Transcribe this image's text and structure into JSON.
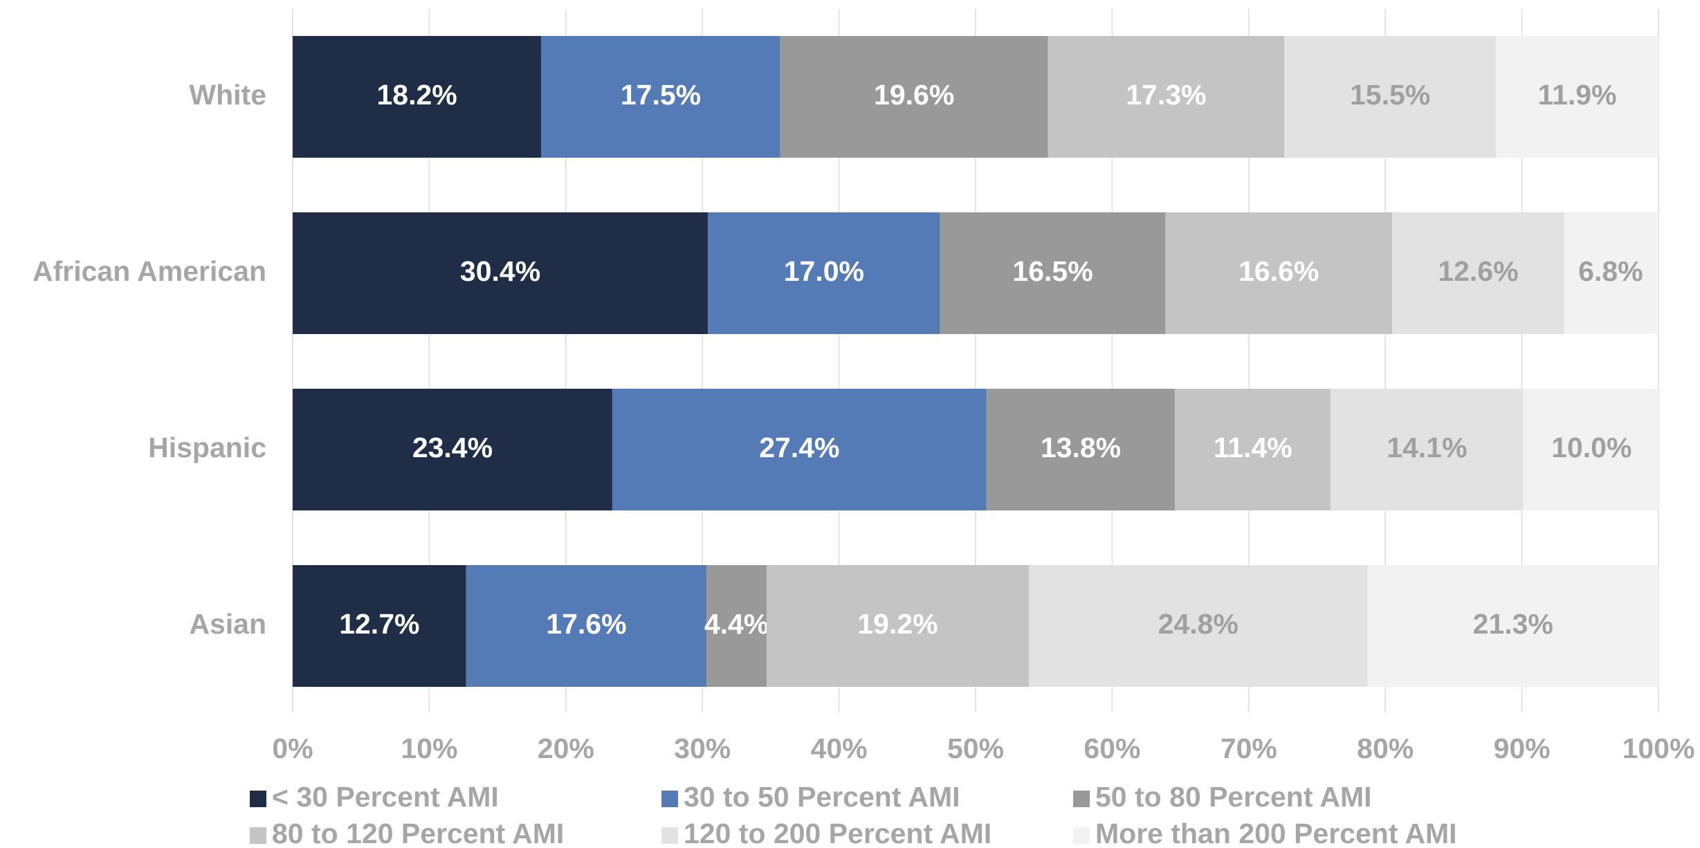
{
  "chart_data": {
    "type": "stacked-bar-horizontal",
    "categories": [
      "White",
      "African American",
      "Hispanic",
      "Asian"
    ],
    "series": [
      {
        "name": "< 30 Percent AMI",
        "color": "#1f2d47",
        "label_color": "#ffffff",
        "values": [
          18.2,
          30.4,
          23.4,
          12.7
        ],
        "value_labels": [
          "18.2%",
          "30.4%",
          "23.4%",
          "12.7%"
        ]
      },
      {
        "name": "30 to 50 Percent AMI",
        "color": "#547bb6",
        "label_color": "#ffffff",
        "values": [
          17.5,
          17.0,
          27.4,
          17.6
        ],
        "value_labels": [
          "17.5%",
          "17.0%",
          "27.4%",
          "17.6%"
        ]
      },
      {
        "name": "50 to 80 Percent AMI",
        "color": "#999999",
        "label_color": "#ffffff",
        "values": [
          19.6,
          16.5,
          13.8,
          4.4
        ],
        "value_labels": [
          "19.6%",
          "16.5%",
          "13.8%",
          "4.4%"
        ]
      },
      {
        "name": "80 to 120 Percent AMI",
        "color": "#c4c4c4",
        "label_color": "#ffffff",
        "values": [
          17.3,
          16.6,
          11.4,
          19.2
        ],
        "value_labels": [
          "17.3%",
          "16.6%",
          "11.4%",
          "19.2%"
        ]
      },
      {
        "name": "120 to 200 Percent AMI",
        "color": "#e2e2e2",
        "label_color": "#a0a0a0",
        "values": [
          15.5,
          12.6,
          14.1,
          24.8
        ],
        "value_labels": [
          "15.5%",
          "12.6%",
          "14.1%",
          "24.8%"
        ]
      },
      {
        "name": "More than 200 Percent AMI",
        "color": "#f2f2f2",
        "label_color": "#a0a0a0",
        "values": [
          11.9,
          6.8,
          10.0,
          21.3
        ],
        "value_labels": [
          "11.9%",
          "6.8%",
          "10.0%",
          "21.3%"
        ]
      }
    ],
    "xlim": [
      0,
      100
    ],
    "xticks": [
      {
        "value": 0,
        "label": "0%"
      },
      {
        "value": 10,
        "label": "10%"
      },
      {
        "value": 20,
        "label": "20%"
      },
      {
        "value": 30,
        "label": "30%"
      },
      {
        "value": 40,
        "label": "40%"
      },
      {
        "value": 50,
        "label": "50%"
      },
      {
        "value": 60,
        "label": "60%"
      },
      {
        "value": 70,
        "label": "70%"
      },
      {
        "value": 80,
        "label": "80%"
      },
      {
        "value": 90,
        "label": "90%"
      },
      {
        "value": 100,
        "label": "100%"
      }
    ],
    "grid": true
  }
}
